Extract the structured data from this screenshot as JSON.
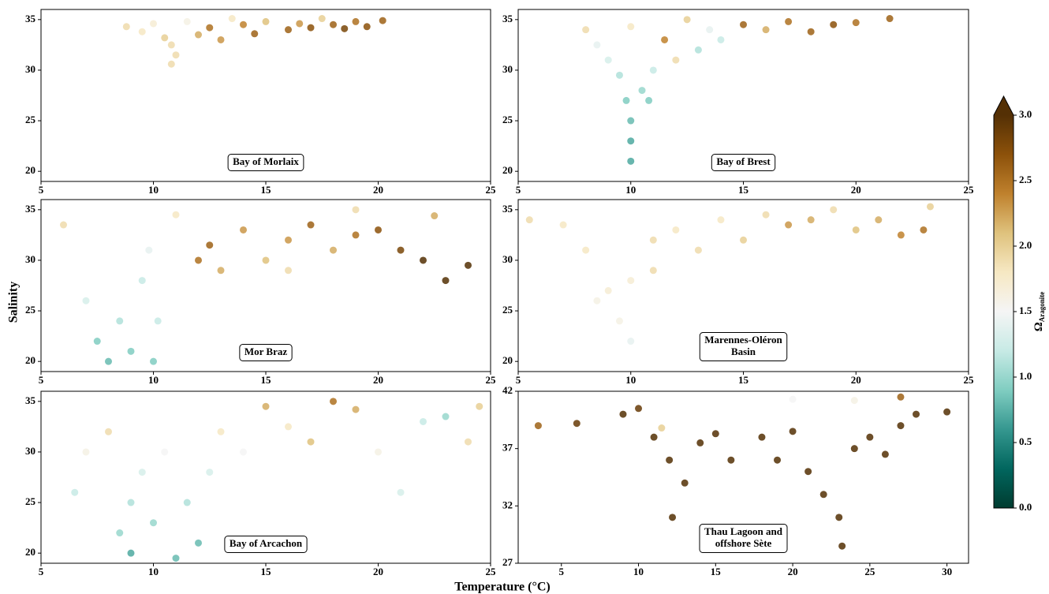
{
  "chart_data": [
    {
      "type": "scatter",
      "label": [
        "Bay of Morlaix"
      ],
      "xlim": [
        5,
        25
      ],
      "ylim": [
        19,
        36
      ],
      "xticks": [
        5,
        10,
        15,
        20,
        25
      ],
      "yticks": [
        20,
        25,
        30,
        35
      ],
      "x": [
        8.8,
        9.5,
        10,
        10.5,
        10.8,
        11,
        10.8,
        11.5,
        12,
        12.5,
        13,
        14,
        14.5,
        15,
        16,
        16.5,
        17,
        18,
        18.5,
        19,
        19.5,
        20.2,
        13.5,
        17.5
      ],
      "values": [
        34.3,
        33.8,
        34.6,
        33.2,
        32.5,
        31.5,
        30.6,
        34.8,
        33.5,
        34.2,
        33,
        34.5,
        33.6,
        34.8,
        34,
        34.6,
        34.2,
        34.5,
        34.1,
        34.8,
        34.3,
        34.9,
        35.1,
        35.1
      ],
      "color_values": [
        1.9,
        1.8,
        1.7,
        2.0,
        1.9,
        1.9,
        1.9,
        1.6,
        2.2,
        2.5,
        2.3,
        2.4,
        2.6,
        2.1,
        2.6,
        2.3,
        2.7,
        2.6,
        2.8,
        2.5,
        2.7,
        2.6,
        1.8,
        2.0
      ]
    },
    {
      "type": "scatter",
      "label": [
        "Bay of Brest"
      ],
      "xlim": [
        5,
        25
      ],
      "ylim": [
        19,
        36
      ],
      "xticks": [
        5,
        10,
        15,
        20,
        25
      ],
      "yticks": [
        20,
        25,
        30,
        35
      ],
      "x": [
        8,
        8.5,
        9,
        9.5,
        9.8,
        10,
        10,
        10,
        10.5,
        10.8,
        11,
        11.5,
        12,
        13,
        13.5,
        14,
        15,
        16,
        17,
        18,
        19,
        20,
        21.5,
        10,
        12.5
      ],
      "values": [
        34,
        32.5,
        31,
        29.5,
        27,
        25,
        23,
        21,
        28,
        27,
        30,
        33,
        31,
        32,
        34,
        33,
        34.5,
        34,
        34.8,
        33.8,
        34.5,
        34.7,
        35.1,
        34.3,
        35
      ],
      "color_values": [
        1.9,
        1.4,
        1.3,
        1.1,
        0.9,
        0.8,
        0.7,
        0.7,
        1.0,
        0.9,
        1.2,
        2.4,
        1.9,
        1.1,
        1.4,
        1.2,
        2.6,
        2.2,
        2.5,
        2.6,
        2.7,
        2.5,
        2.6,
        1.8,
        2.0
      ]
    },
    {
      "type": "scatter",
      "label": [
        "Mor Braz"
      ],
      "xlim": [
        5,
        25
      ],
      "ylim": [
        19,
        36
      ],
      "xticks": [
        5,
        10,
        15,
        20,
        25
      ],
      "yticks": [
        20,
        25,
        30,
        35
      ],
      "x": [
        6,
        7,
        7.5,
        8,
        8.5,
        9,
        9.5,
        9.8,
        10,
        10.2,
        11,
        12,
        12.5,
        13,
        14,
        15,
        16,
        17,
        18,
        19,
        20,
        21,
        22,
        23,
        24,
        22.5,
        19,
        16
      ],
      "values": [
        33.5,
        26,
        22,
        20,
        24,
        21,
        28,
        31,
        20,
        24,
        34.5,
        30,
        31.5,
        29,
        33,
        30,
        32,
        33.5,
        31,
        32.5,
        33,
        31,
        30,
        28,
        29.5,
        34.4,
        35,
        29
      ],
      "color_values": [
        1.9,
        1.3,
        0.9,
        0.8,
        1.1,
        0.9,
        1.2,
        1.4,
        0.9,
        1.2,
        1.8,
        2.5,
        2.6,
        2.2,
        2.3,
        2.1,
        2.3,
        2.6,
        2.2,
        2.5,
        2.7,
        2.8,
        3.0,
        3.0,
        3.0,
        2.2,
        1.9,
        1.9
      ]
    },
    {
      "type": "scatter",
      "label": [
        "Marennes-Oléron",
        "Basin"
      ],
      "xlim": [
        5,
        25
      ],
      "ylim": [
        19,
        36
      ],
      "xticks": [
        5,
        10,
        15,
        20,
        25
      ],
      "yticks": [
        20,
        25,
        30,
        35
      ],
      "x": [
        5.5,
        7,
        8,
        8.5,
        9,
        9.5,
        10,
        10,
        11,
        11,
        12,
        13,
        14,
        15,
        16,
        17,
        18,
        19,
        20,
        21,
        22,
        23,
        23.3
      ],
      "values": [
        34,
        33.5,
        31,
        26,
        27,
        24,
        22,
        28,
        29,
        32,
        33,
        31,
        34,
        32,
        34.5,
        33.5,
        34,
        35,
        33,
        34,
        32.5,
        33,
        35.3
      ],
      "color_values": [
        1.9,
        1.8,
        1.8,
        1.6,
        1.7,
        1.6,
        1.4,
        1.7,
        1.9,
        1.9,
        1.8,
        1.9,
        1.8,
        2.0,
        1.9,
        2.3,
        2.2,
        1.9,
        2.1,
        2.2,
        2.4,
        2.5,
        2.0
      ]
    },
    {
      "type": "scatter",
      "label": [
        "Bay of Arcachon"
      ],
      "xlim": [
        5,
        25
      ],
      "ylim": [
        19,
        36
      ],
      "xticks": [
        5,
        10,
        15,
        20,
        25
      ],
      "yticks": [
        20,
        25,
        30,
        35
      ],
      "x": [
        6.5,
        7,
        8,
        8.5,
        9,
        9,
        9.5,
        10,
        10.5,
        11,
        11.5,
        12,
        12.5,
        13,
        14,
        15,
        16,
        17,
        18,
        19,
        20,
        21,
        22,
        23,
        24,
        24.5
      ],
      "values": [
        26,
        30,
        32,
        22,
        20,
        25,
        28,
        23,
        30,
        19.5,
        25,
        21,
        28,
        32,
        30,
        34.5,
        32.5,
        31,
        35,
        34.2,
        30,
        26,
        33,
        33.5,
        31,
        34.5
      ],
      "color_values": [
        1.2,
        1.6,
        1.9,
        1.0,
        0.7,
        1.1,
        1.3,
        1.0,
        1.5,
        0.8,
        1.1,
        0.8,
        1.3,
        1.8,
        1.5,
        2.2,
        1.8,
        2.1,
        2.5,
        2.2,
        1.6,
        1.3,
        1.2,
        1.0,
        1.9,
        2.0
      ]
    },
    {
      "type": "scatter",
      "label": [
        "Thau Lagoon and",
        "offshore Sète"
      ],
      "xlim": [
        2.2,
        31.4
      ],
      "ylim": [
        27,
        42
      ],
      "xticks": [
        5,
        10,
        15,
        20,
        25,
        30
      ],
      "yticks": [
        27,
        32,
        37,
        42
      ],
      "x": [
        3.5,
        6,
        9,
        10,
        11,
        12,
        12.2,
        13,
        14,
        15,
        16,
        18,
        19,
        20,
        21,
        22,
        23,
        23.2,
        24,
        25,
        26,
        27,
        28,
        30,
        20,
        24,
        27,
        11.5
      ],
      "values": [
        39,
        39.2,
        40,
        40.5,
        38,
        36,
        31,
        34,
        37.5,
        38.3,
        36,
        38,
        36,
        38.5,
        35,
        33,
        31,
        28.5,
        37,
        38,
        36.5,
        39,
        40,
        40.2,
        41.3,
        41.2,
        41.5,
        38.8
      ],
      "color_values": [
        2.6,
        2.9,
        3.0,
        2.9,
        3.0,
        3.0,
        3.0,
        3.0,
        3.0,
        3.0,
        3.0,
        3.0,
        3.0,
        3.0,
        3.0,
        3.0,
        3.0,
        3.0,
        3.0,
        3.0,
        3.0,
        3.0,
        3.0,
        3.0,
        1.5,
        1.6,
        2.6,
        2.0
      ]
    }
  ],
  "x_label": "Temperature (°C)",
  "y_label": "Salinity",
  "colorbar": {
    "symbol": "Ω",
    "subscript": "Aragonite",
    "lim": [
      0,
      3
    ],
    "ticks": [
      {
        "value": 0,
        "label": "0.0"
      },
      {
        "value": 0.5,
        "label": "0.5"
      },
      {
        "value": 1,
        "label": "1.0"
      },
      {
        "value": 1.5,
        "label": "1.5"
      },
      {
        "value": 2,
        "label": "2.0"
      },
      {
        "value": 2.5,
        "label": "2.5"
      },
      {
        "value": 3,
        "label": "3.0"
      }
    ],
    "colormap": [
      "#003c30",
      "#01665e",
      "#35978f",
      "#80cdc1",
      "#c7eae5",
      "#f5f5f5",
      "#f6e8c3",
      "#dfc27d",
      "#bf812d",
      "#8c510a",
      "#543005"
    ]
  }
}
